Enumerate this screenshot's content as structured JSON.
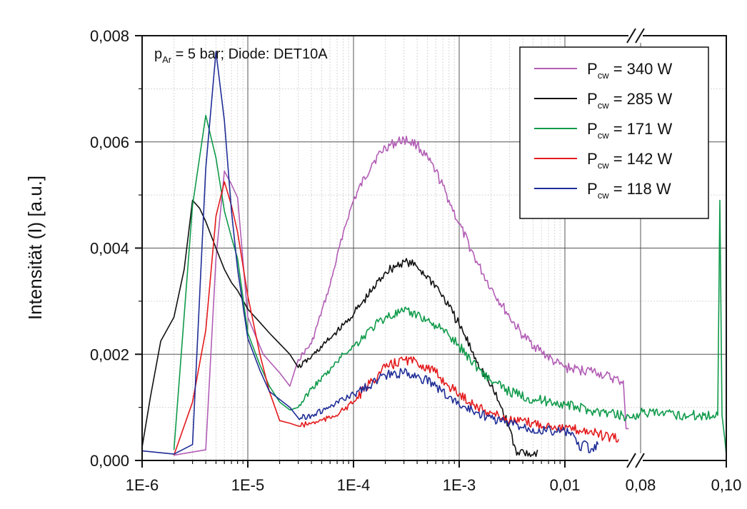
{
  "chart_data": {
    "type": "line",
    "title": "",
    "ylabel": "Intensität (I) [a.u.]",
    "xlabel": "",
    "x_scale": "log with axis break",
    "ylim": [
      0,
      0.008
    ],
    "y_ticks": [
      "0,000",
      "0,002",
      "0,004",
      "0,006",
      "0,008"
    ],
    "x_ticks": [
      "1E-6",
      "1E-5",
      "1E-4",
      "1E-3",
      "0,01",
      "0,08",
      "0,10"
    ],
    "x_break_between": [
      "0,01",
      "0,08"
    ],
    "annotation": {
      "lead": "p",
      "sub": "Ar",
      "rest": " = 5 bar; Diode: DET10A"
    },
    "legend_position": "top-right",
    "series": [
      {
        "name_main": "P",
        "name_sub": "cw",
        "name_rest": " = 340 W",
        "color": "#b25db5",
        "points": [
          [
            2e-06,
            0.0001
          ],
          [
            4e-06,
            0.0002
          ],
          [
            5e-06,
            0.0038
          ],
          [
            6e-06,
            0.00545
          ],
          [
            7e-06,
            0.0052
          ],
          [
            8e-06,
            0.00495
          ],
          [
            1e-05,
            0.0027
          ],
          [
            1.4e-05,
            0.002
          ],
          [
            2e-05,
            0.00165
          ],
          [
            2.5e-05,
            0.0014
          ],
          [
            3e-05,
            0.0019
          ],
          [
            4e-05,
            0.0022
          ],
          [
            6e-05,
            0.0033
          ],
          [
            8e-05,
            0.0043
          ],
          [
            0.0001,
            0.0049
          ],
          [
            0.00015,
            0.0056
          ],
          [
            0.0002,
            0.0059
          ],
          [
            0.0003,
            0.00605
          ],
          [
            0.0004,
            0.00595
          ],
          [
            0.0006,
            0.00545
          ],
          [
            0.0008,
            0.0049
          ],
          [
            0.001,
            0.00445
          ],
          [
            0.0015,
            0.0037
          ],
          [
            0.002,
            0.00325
          ],
          [
            0.003,
            0.0027
          ],
          [
            0.004,
            0.00235
          ],
          [
            0.006,
            0.00205
          ],
          [
            0.008,
            0.00185
          ],
          [
            0.01,
            0.00175
          ],
          [
            0.015,
            0.0017
          ],
          [
            0.02,
            0.0017
          ],
          [
            0.025,
            0.00165
          ],
          [
            0.03,
            0.0016
          ],
          [
            0.044,
            0.0015
          ],
          [
            0.05,
            0.0015
          ],
          [
            0.054,
            0.0006
          ],
          [
            0.058,
            0.0006
          ]
        ]
      },
      {
        "name_main": "P",
        "name_sub": "cw",
        "name_rest": " = 285 W",
        "color": "#111111",
        "points": [
          [
            1e-06,
            0.00025
          ],
          [
            1.2e-06,
            0.0012
          ],
          [
            1.5e-06,
            0.00225
          ],
          [
            2e-06,
            0.0027
          ],
          [
            2.5e-06,
            0.0036
          ],
          [
            3e-06,
            0.0049
          ],
          [
            3.5e-06,
            0.00475
          ],
          [
            4e-06,
            0.0045
          ],
          [
            5e-06,
            0.004
          ],
          [
            6e-06,
            0.0036
          ],
          [
            7e-06,
            0.00335
          ],
          [
            8e-06,
            0.0032
          ],
          [
            1e-05,
            0.00285
          ],
          [
            1.3e-05,
            0.0026
          ],
          [
            1.6e-05,
            0.0024
          ],
          [
            2e-05,
            0.0022
          ],
          [
            2.5e-05,
            0.002
          ],
          [
            3e-05,
            0.00175
          ],
          [
            4e-05,
            0.00195
          ],
          [
            6e-05,
            0.0023
          ],
          [
            8e-05,
            0.00255
          ],
          [
            0.0001,
            0.00275
          ],
          [
            0.00015,
            0.0032
          ],
          [
            0.0002,
            0.00355
          ],
          [
            0.0003,
            0.00375
          ],
          [
            0.0004,
            0.00365
          ],
          [
            0.0006,
            0.0033
          ],
          [
            0.0008,
            0.0029
          ],
          [
            0.001,
            0.00255
          ],
          [
            0.0015,
            0.00185
          ],
          [
            0.002,
            0.0014
          ],
          [
            0.0025,
            0.001
          ],
          [
            0.003,
            0.0006
          ],
          [
            0.0035,
            0.0001
          ],
          [
            0.004,
            0.0002
          ],
          [
            0.005,
            0.0001
          ],
          [
            0.0055,
            0.0002
          ]
        ]
      },
      {
        "name_main": "P",
        "name_sub": "cw",
        "name_rest": " = 171 W",
        "color": "#0f9a4a",
        "points": [
          [
            2e-06,
            0.0002
          ],
          [
            3e-06,
            0.0048
          ],
          [
            4e-06,
            0.0065
          ],
          [
            5e-06,
            0.0057
          ],
          [
            6e-06,
            0.0047
          ],
          [
            7e-06,
            0.0042
          ],
          [
            8e-06,
            0.0038
          ],
          [
            1e-05,
            0.0024
          ],
          [
            1.3e-05,
            0.0018
          ],
          [
            1.6e-05,
            0.0014
          ],
          [
            2e-05,
            0.0011
          ],
          [
            2.5e-05,
            0.00095
          ],
          [
            3e-05,
            0.001
          ],
          [
            4e-05,
            0.00135
          ],
          [
            6e-05,
            0.0017
          ],
          [
            8e-05,
            0.002
          ],
          [
            0.0001,
            0.00215
          ],
          [
            0.00015,
            0.0025
          ],
          [
            0.0002,
            0.0027
          ],
          [
            0.0003,
            0.0028
          ],
          [
            0.0004,
            0.00275
          ],
          [
            0.0006,
            0.00255
          ],
          [
            0.0008,
            0.00235
          ],
          [
            0.001,
            0.00215
          ],
          [
            0.0015,
            0.00175
          ],
          [
            0.002,
            0.0015
          ],
          [
            0.003,
            0.0013
          ],
          [
            0.005,
            0.00115
          ],
          [
            0.008,
            0.0011
          ],
          [
            0.01,
            0.00105
          ],
          [
            0.02,
            0.00095
          ],
          [
            0.03,
            0.0009
          ],
          [
            0.05,
            0.00085
          ],
          [
            0.06,
            0.0008
          ],
          [
            0.08,
            0.0009
          ],
          [
            0.09,
            0.00085
          ],
          [
            0.098,
            0.00085
          ],
          [
            0.0985,
            0.0049
          ],
          [
            0.099,
            0.00085
          ],
          [
            0.1,
            0.0001
          ]
        ]
      },
      {
        "name_main": "P",
        "name_sub": "cw",
        "name_rest": " = 142 W",
        "color": "#e41a1c",
        "points": [
          [
            2e-06,
            0.0001
          ],
          [
            3e-06,
            0.0011
          ],
          [
            4e-06,
            0.00245
          ],
          [
            5e-06,
            0.0046
          ],
          [
            6e-06,
            0.00525
          ],
          [
            7e-06,
            0.0048
          ],
          [
            8e-06,
            0.0043
          ],
          [
            1e-05,
            0.0031
          ],
          [
            1.3e-05,
            0.002
          ],
          [
            1.6e-05,
            0.0013
          ],
          [
            2e-05,
            0.00075
          ],
          [
            2.5e-05,
            0.0007
          ],
          [
            3e-05,
            0.00065
          ],
          [
            4e-05,
            0.0007
          ],
          [
            6e-05,
            0.0008
          ],
          [
            8e-05,
            0.00095
          ],
          [
            0.0001,
            0.0011
          ],
          [
            0.00015,
            0.0015
          ],
          [
            0.0002,
            0.00175
          ],
          [
            0.0003,
            0.0019
          ],
          [
            0.0004,
            0.00185
          ],
          [
            0.0006,
            0.00165
          ],
          [
            0.0008,
            0.0014
          ],
          [
            0.001,
            0.00125
          ],
          [
            0.0015,
            0.001
          ],
          [
            0.002,
            0.0009
          ],
          [
            0.003,
            0.00075
          ],
          [
            0.005,
            0.0007
          ],
          [
            0.008,
            0.00065
          ],
          [
            0.01,
            0.0006
          ],
          [
            0.02,
            0.00055
          ],
          [
            0.03,
            0.00045
          ],
          [
            0.044,
            0.0004
          ]
        ]
      },
      {
        "name_main": "P",
        "name_sub": "cw",
        "name_rest": " = 118 W",
        "color": "#1f2d96",
        "points": [
          [
            1e-06,
            0.00018
          ],
          [
            2e-06,
            0.00012
          ],
          [
            3e-06,
            0.0003
          ],
          [
            4e-06,
            0.0055
          ],
          [
            5e-06,
            0.0077
          ],
          [
            6e-06,
            0.0064
          ],
          [
            7e-06,
            0.0047
          ],
          [
            8e-06,
            0.0036
          ],
          [
            1e-05,
            0.0023
          ],
          [
            1.3e-05,
            0.0017
          ],
          [
            1.6e-05,
            0.0013
          ],
          [
            2e-05,
            0.00115
          ],
          [
            2.5e-05,
            0.001
          ],
          [
            3e-05,
            0.0008
          ],
          [
            4e-05,
            0.00085
          ],
          [
            6e-05,
            0.001
          ],
          [
            8e-05,
            0.00115
          ],
          [
            0.0001,
            0.00125
          ],
          [
            0.00015,
            0.00145
          ],
          [
            0.0002,
            0.0016
          ],
          [
            0.0003,
            0.00165
          ],
          [
            0.0004,
            0.0016
          ],
          [
            0.0006,
            0.0014
          ],
          [
            0.0008,
            0.0012
          ],
          [
            0.001,
            0.00105
          ],
          [
            0.0015,
            0.0009
          ],
          [
            0.002,
            0.0008
          ],
          [
            0.003,
            0.0007
          ],
          [
            0.005,
            0.0006
          ],
          [
            0.008,
            0.00055
          ],
          [
            0.01,
            0.00055
          ],
          [
            0.013,
            0.00045
          ],
          [
            0.015,
            0.0002
          ],
          [
            0.018,
            0.00035
          ],
          [
            0.02,
            0.00015
          ],
          [
            0.025,
            0.0003
          ]
        ]
      }
    ]
  }
}
